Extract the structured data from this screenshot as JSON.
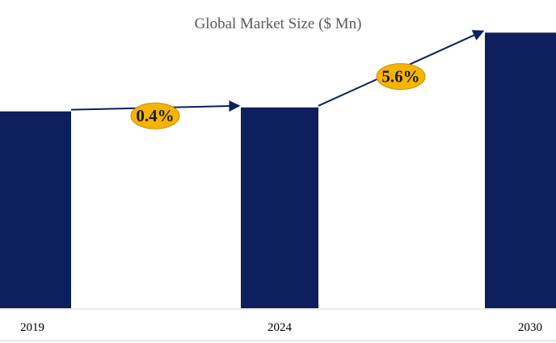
{
  "chart_data": {
    "type": "bar",
    "title": "Global Market Size ($ Mn)",
    "xlabel": "",
    "ylabel": "",
    "categories": [
      "2019",
      "2024",
      "2030"
    ],
    "values": [
      100,
      102,
      140
    ],
    "ylim": [
      0,
      150
    ],
    "grid": false,
    "legend": "none",
    "annotations": [
      {
        "from": "2019",
        "to": "2024",
        "label": "0.4%"
      },
      {
        "from": "2024",
        "to": "2030",
        "label": "5.6%"
      }
    ]
  },
  "colors": {
    "bar": "#0d1f5c",
    "arrow": "#0d1f5c",
    "badge_fill": "#f5b400",
    "badge_stroke": "#c98f00",
    "axis": "#d9d9d9"
  }
}
